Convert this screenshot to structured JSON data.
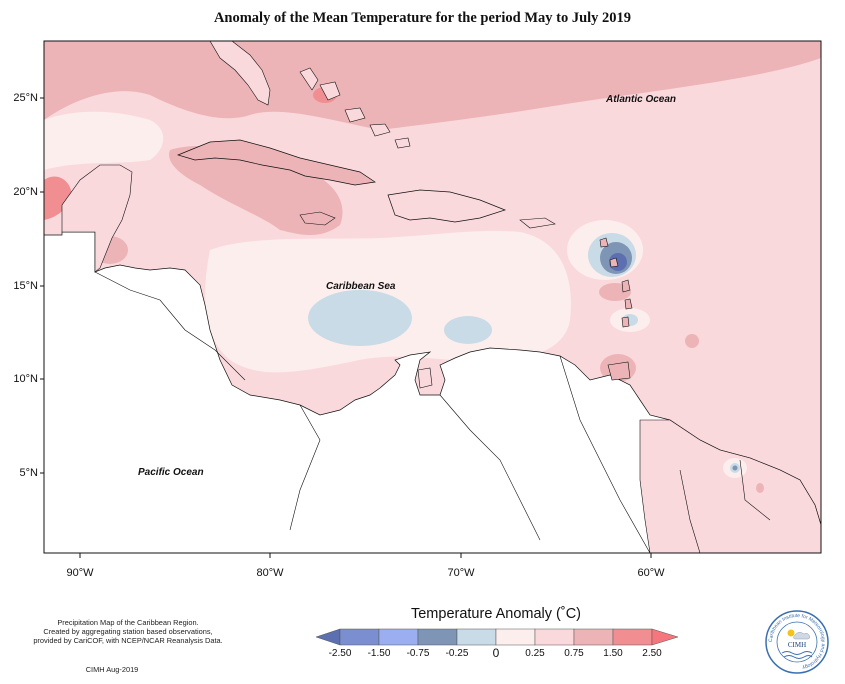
{
  "title": "Anomaly of the Mean Temperature for the period May to July 2019",
  "lat_labels": [
    "25°N",
    "20°N",
    "15°N",
    "10°N",
    "5°N"
  ],
  "lon_labels": [
    "90°W",
    "80°W",
    "70°W",
    "60°W"
  ],
  "ocean_labels": {
    "atlantic": "Atlantic Ocean",
    "caribbean": "Caribbean Sea",
    "pacific": "Pacific Ocean"
  },
  "footer": {
    "line1": "Precipitation Map of the Caribbean Region.",
    "line2": "Created by aggregating station based observations,",
    "line3": "provided by CariCOF, with NCEP/NCAR Reanalysis Data.",
    "credit": "CIMH Aug-2019"
  },
  "legend": {
    "title": "Temperature Anomaly (˚C)",
    "ticks": [
      "-2.50",
      "-1.50",
      "-0.75",
      "-0.25",
      "0",
      "0.25",
      "0.75",
      "1.50",
      "2.50"
    ],
    "colors": [
      "#5c6fb0",
      "#7b8fd0",
      "#9aaef0",
      "#7f95b5",
      "#c8dbe6",
      "#fdeeee",
      "#fad9dd",
      "#edb4b8",
      "#f08e92",
      "#f5777d"
    ]
  },
  "logo": {
    "text": "CIMH",
    "ring_text": "Caribbean Institute for Meteorology and Hydrology"
  }
}
